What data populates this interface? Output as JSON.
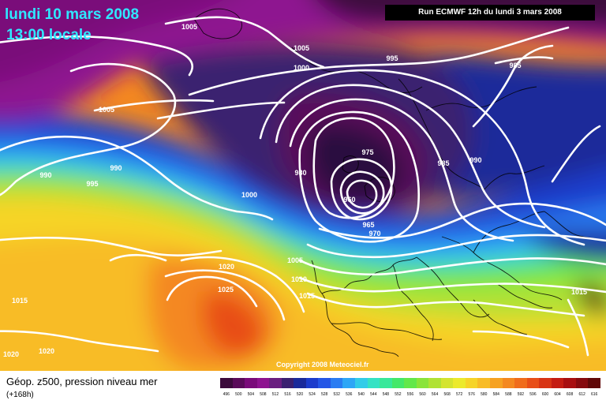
{
  "title": {
    "date": "lundi 10 mars 2008",
    "time": "13:00 locale"
  },
  "run_banner": "Run ECMWF 12h du lundi 3 mars 2008",
  "copyright": "Copyright 2008 Meteociel.fr",
  "footer": {
    "field": "Géop. z500, pression niveau mer",
    "lead": "(+168h)"
  },
  "isobar_labels": [
    "1005",
    "1005",
    "995",
    "985",
    "1000",
    "1005",
    "990",
    "990",
    "995",
    "975",
    "980",
    "985",
    "990",
    "960",
    "965",
    "970",
    "1000",
    "1020",
    "1025",
    "1005",
    "1010",
    "1015",
    "1015",
    "1015",
    "1020",
    "1020"
  ],
  "legend": {
    "ticks": [
      "496",
      "500",
      "504",
      "508",
      "512",
      "516",
      "520",
      "524",
      "528",
      "532",
      "536",
      "540",
      "544",
      "548",
      "552",
      "556",
      "560",
      "564",
      "568",
      "572",
      "576",
      "580",
      "584",
      "588",
      "592",
      "596",
      "600",
      "604",
      "608",
      "612",
      "616"
    ],
    "colors": [
      "#3c0a3c",
      "#5a0a5a",
      "#7a0a7a",
      "#8e1290",
      "#6a1e80",
      "#3a2070",
      "#1a2a9a",
      "#1c3ccc",
      "#2456e6",
      "#2a7cf2",
      "#2ea6f6",
      "#32cce8",
      "#34e2c4",
      "#38e89a",
      "#44e86a",
      "#62e84a",
      "#8ae43a",
      "#b0e234",
      "#d4e430",
      "#ecea2c",
      "#f6d428",
      "#f8bc26",
      "#f6a222",
      "#f48820",
      "#f06c1c",
      "#e84e18",
      "#d83414",
      "#c41c12",
      "#a80e10",
      "#860a0e",
      "#600808"
    ]
  },
  "colors": {
    "title": "#2fe8ff",
    "isobar": "#ffffff",
    "banner_bg": "#000000"
  }
}
